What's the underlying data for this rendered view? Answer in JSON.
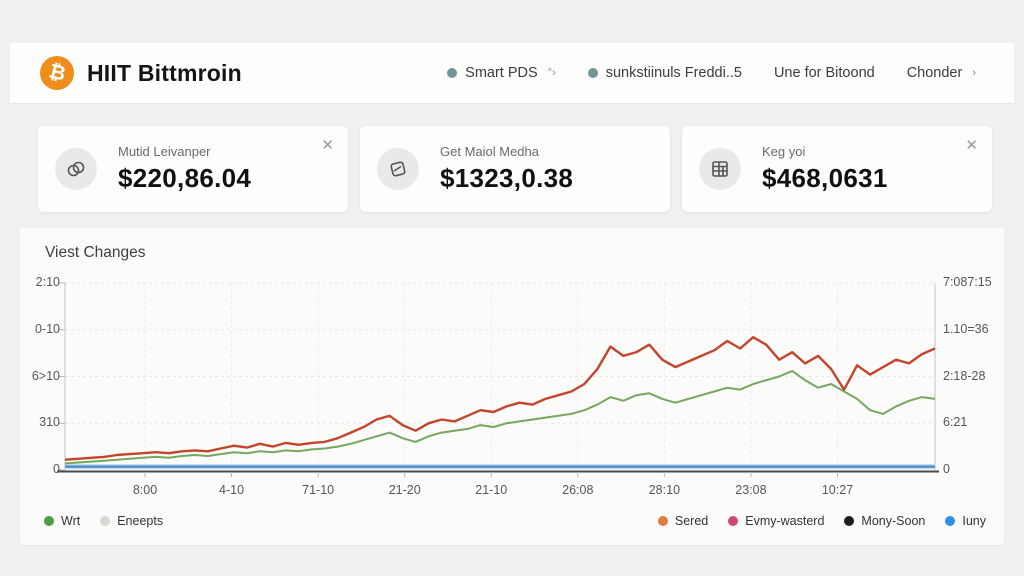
{
  "header": {
    "logo_symbol": "₿",
    "logo_color": "#ef8e1d",
    "title": "HIIT Bittmroin",
    "nav": [
      {
        "label": "Smart PDS",
        "suffix": "°›",
        "dot": true
      },
      {
        "label": "sunkstiinuls Freddi..5",
        "suffix": "",
        "dot": true
      },
      {
        "label": "Une for Bitoond",
        "suffix": "",
        "dot": false
      },
      {
        "label": "Chonder",
        "suffix": "›",
        "dot": false
      }
    ]
  },
  "cards": [
    {
      "icon": "rings-icon",
      "label": "Mutid Leivanper",
      "value": "$220,86.04",
      "close_glyph": "✕"
    },
    {
      "icon": "send-icon",
      "label": "Get Maiol Medha",
      "value": "$1323,0.38",
      "close_glyph": ""
    },
    {
      "icon": "spreadsheet-icon",
      "label": "Keg yoi",
      "value": "$468,0631",
      "close_glyph": "✕"
    }
  ],
  "chart_data": {
    "type": "line",
    "title": "Viest Changes",
    "note": "axis text is low-legibility in source; series values are percent of plot height (0 = bottom axis, 100 = top gridline), estimated from pixels",
    "grid": true,
    "ylim": [
      0,
      100
    ],
    "x_tick_labels": [
      "8:00",
      "4-10",
      "71-10",
      "21-20",
      "21-10",
      "26:08",
      "28:10",
      "23:08",
      "10:27"
    ],
    "y_axis_left_labels": [
      "2:10",
      "0-10",
      "6>10",
      "310",
      "0"
    ],
    "y_axis_right_labels": [
      "7:087:15",
      "1.10=36",
      "2:18-28",
      "6:21",
      "0"
    ],
    "series": [
      {
        "name": "Sered",
        "color": "#c2452c",
        "width": 2.4,
        "values": [
          5.5,
          6,
          6.5,
          7,
          8,
          8.5,
          9,
          9.5,
          9,
          10,
          10.5,
          10,
          11.5,
          13,
          12,
          14,
          12.5,
          14.5,
          13.5,
          14.5,
          15,
          17,
          20,
          23,
          27,
          29,
          24,
          21,
          25,
          27,
          26,
          29,
          32,
          31,
          34,
          36,
          35,
          38,
          40,
          42,
          46,
          54,
          66,
          61,
          63,
          67,
          59,
          55,
          58,
          61,
          64,
          69,
          65,
          71,
          67,
          59,
          63,
          57,
          61,
          54,
          43,
          56,
          51,
          55,
          59,
          57,
          62,
          65
        ]
      },
      {
        "name": "Wrt",
        "color": "#74a85e",
        "width": 2,
        "values": [
          3.5,
          4,
          4.5,
          5,
          5.5,
          6,
          6.5,
          7,
          6.5,
          7.5,
          8,
          7.5,
          8.5,
          9.5,
          9,
          10,
          9.5,
          10.5,
          10,
          11,
          11.5,
          12.5,
          14,
          16,
          18,
          20,
          17,
          15,
          18,
          20,
          21,
          22,
          24,
          23,
          25,
          26,
          27,
          28,
          29,
          30,
          32,
          35,
          39,
          37,
          40,
          41,
          38,
          36,
          38,
          40,
          42,
          44,
          43,
          46,
          48,
          50,
          53,
          48,
          44,
          46,
          42,
          38,
          32,
          30,
          34,
          37,
          39,
          38
        ]
      },
      {
        "name": "Iuny",
        "color": "#3f86c6",
        "width": 2,
        "halo": "#b9d7f0",
        "values": [
          1.8,
          1.8
        ]
      }
    ],
    "legend_left": [
      {
        "label": "Wrt",
        "color": "#4a9e3f"
      },
      {
        "label": "Eneepts",
        "color": "#d8d8d4"
      }
    ],
    "legend_right": [
      {
        "label": "Sered",
        "color": "#dd7e3e"
      },
      {
        "label": "Evmy-wasterd",
        "color": "#cc4877"
      },
      {
        "label": "Mony-Soon",
        "color": "#1d1d1d"
      },
      {
        "label": "Iuny",
        "color": "#2f8fe8"
      }
    ]
  }
}
